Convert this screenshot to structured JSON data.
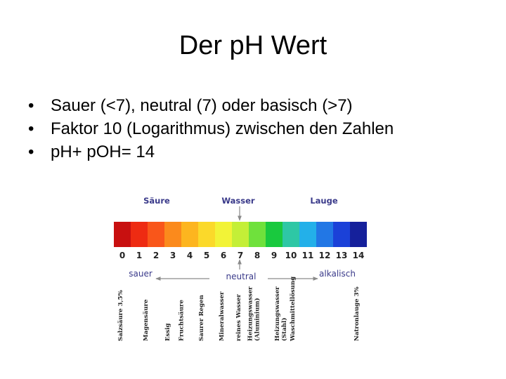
{
  "slide": {
    "title": "Der pH Wert",
    "bullets": [
      "Sauer (<7), neutral (7) oder basisch (>7)",
      "Faktor 10 (Logarithmus) zwischen den Zahlen",
      "pH+ pOH= 14"
    ],
    "bullet_char": "•"
  },
  "figure": {
    "header": {
      "acid": "Säure",
      "water": "Wasser",
      "base": "Lauge"
    },
    "colors": [
      "#c81010",
      "#ee2b12",
      "#f9561a",
      "#fb8a1c",
      "#fdb51f",
      "#fbd92a",
      "#f2f337",
      "#c4ef37",
      "#6fe13c",
      "#19c93e",
      "#2ec7a5",
      "#23b0e9",
      "#2277e5",
      "#1b41d8",
      "#15209b"
    ],
    "numbers": [
      "0",
      "1",
      "2",
      "3",
      "4",
      "5",
      "6",
      "7",
      "8",
      "9",
      "10",
      "11",
      "12",
      "13",
      "14"
    ],
    "scale": {
      "acid": "sauer",
      "neutral": "neutral",
      "base": "alkalisch"
    },
    "substances": [
      {
        "lines": [
          "Salzsäure 3,5%"
        ],
        "ph": 0
      },
      {
        "lines": [
          "Magensäure"
        ],
        "ph": 1.5
      },
      {
        "lines": [
          "Essig"
        ],
        "ph": 2.8
      },
      {
        "lines": [
          "Fruchtsäure"
        ],
        "ph": 3.6
      },
      {
        "lines": [
          "Saurer Regen"
        ],
        "ph": 4.8
      },
      {
        "lines": [
          "Mineralwasser"
        ],
        "ph": 6
      },
      {
        "lines": [
          "reines Wasser"
        ],
        "ph": 7
      },
      {
        "lines": [
          "Heizungswasser",
          "(Aluminium)"
        ],
        "ph": 7.9
      },
      {
        "lines": [
          "Heizungswasser",
          "(Stahl)"
        ],
        "ph": 9.5
      },
      {
        "lines": [
          "Waschmittellösung"
        ],
        "ph": 10.2
      },
      {
        "lines": [
          "Natronlauge 3%"
        ],
        "ph": 14
      }
    ]
  }
}
